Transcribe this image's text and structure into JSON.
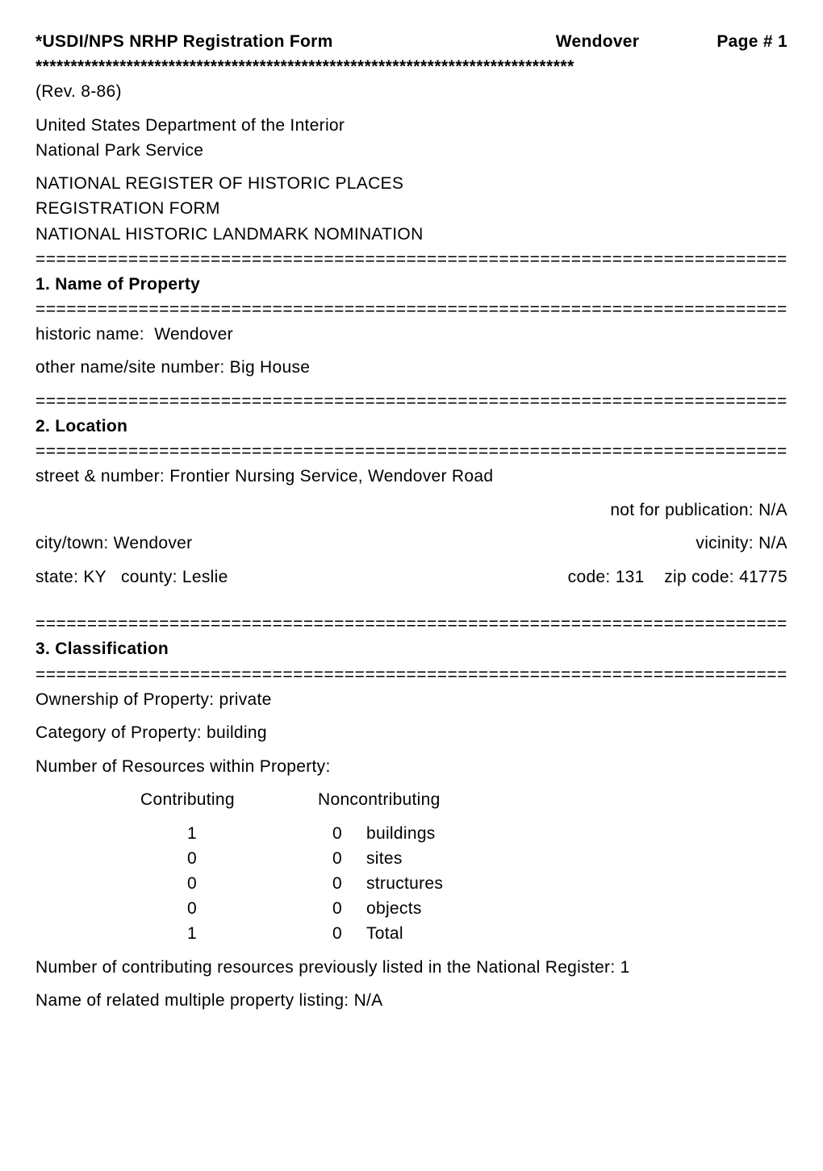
{
  "header": {
    "form_title": "*USDI/NPS NRHP Registration Form",
    "site_name": "Wendover",
    "page_label": "Page # 1",
    "rev": "(Rev. 8-86)"
  },
  "agency": {
    "line1": "United States Department of the Interior",
    "line2": "National Park Service"
  },
  "register": {
    "line1": "NATIONAL REGISTER OF HISTORIC PLACES",
    "line2": "REGISTRATION FORM",
    "line3": "NATIONAL HISTORIC LANDMARK NOMINATION"
  },
  "section1": {
    "title": "1. Name of Property",
    "historic_name_label": "historic name:",
    "historic_name_value": "Wendover",
    "other_name_label": "other name/site number:",
    "other_name_value": "Big House"
  },
  "section2": {
    "title": "2. Location",
    "street_label": "street & number:",
    "street_value": "Frontier Nursing Service, Wendover Road",
    "notpub_label": "not for publication:",
    "notpub_value": "N/A",
    "city_label": "city/town:",
    "city_value": "Wendover",
    "vicinity_label": "vicinity:",
    "vicinity_value": "N/A",
    "state_label": "state:",
    "state_value": "KY",
    "county_label": "county:",
    "county_value": "Leslie",
    "code_label": "code:",
    "code_value": "131",
    "zip_label": "zip code:",
    "zip_value": "41775"
  },
  "section3": {
    "title": "3. Classification",
    "ownership_label": "Ownership of Property:",
    "ownership_value": "private",
    "category_label": "Category of Property:",
    "category_value": "building",
    "resources_label": "Number of Resources within Property:",
    "col_contrib": "Contributing",
    "col_noncontrib": "Noncontributing",
    "rows": [
      {
        "c": "1",
        "n": "0",
        "label": "buildings"
      },
      {
        "c": "0",
        "n": "0",
        "label": "sites"
      },
      {
        "c": "0",
        "n": "0",
        "label": "structures"
      },
      {
        "c": "0",
        "n": "0",
        "label": "objects"
      },
      {
        "c": "1",
        "n": "0",
        "label": "Total"
      }
    ],
    "prev_listed": "Number of contributing resources previously listed in the National Register: 1",
    "multiple_listing": "Name of related multiple property listing: N/A"
  },
  "divider_star": "*****************************************************************************",
  "divider_eq": "========================================================================="
}
